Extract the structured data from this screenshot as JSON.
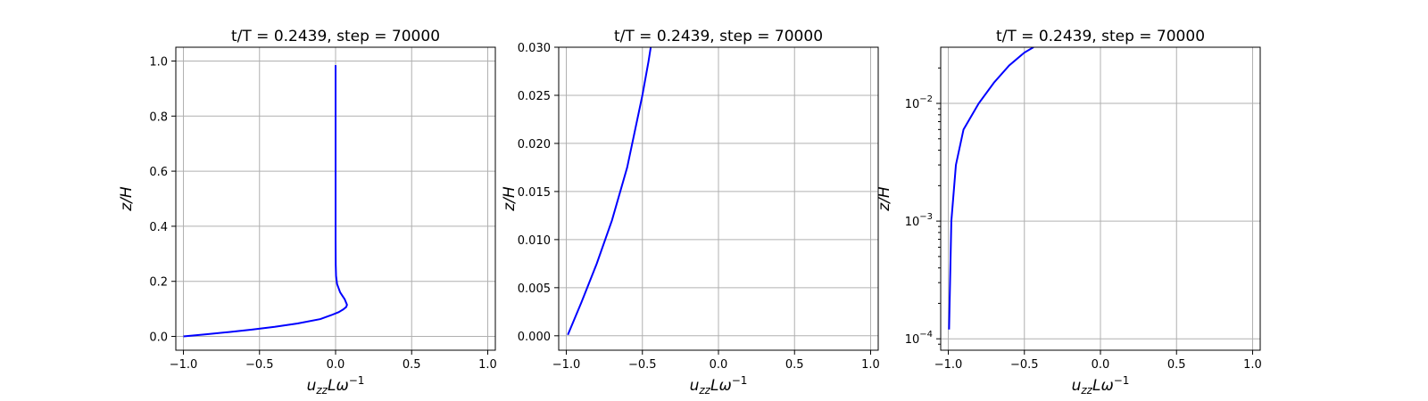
{
  "chart_data": [
    {
      "type": "line",
      "title": "t/T = 0.2439, step = 70000",
      "xlabel_base": "u",
      "xlabel_sub": "zz",
      "xlabel_mid": "Lω",
      "xlabel_sup": "−1",
      "ylabel": "z/H",
      "xlim": [
        -1.05,
        1.05
      ],
      "ylim": [
        -0.05,
        1.05
      ],
      "yscale": "linear",
      "grid": true,
      "xticks": [
        -1.0,
        -0.5,
        0.0,
        0.5,
        1.0
      ],
      "xtick_labels": [
        "−1.0",
        "−0.5",
        "0.0",
        "0.5",
        "1.0"
      ],
      "yticks": [
        0.0,
        0.2,
        0.4,
        0.6,
        0.8,
        1.0
      ],
      "ytick_labels": [
        "0.0",
        "0.2",
        "0.4",
        "0.6",
        "0.8",
        "1.0"
      ],
      "series": [
        {
          "color": "#0000ff",
          "x": [
            -1.0,
            -0.85,
            -0.7,
            -0.55,
            -0.4,
            -0.25,
            -0.1,
            -0.03,
            0.02,
            0.05,
            0.07,
            0.075,
            0.06,
            0.03,
            0.01,
            0.003,
            0.001,
            0.0,
            0.0,
            0.0,
            0.0
          ],
          "y": [
            0.0,
            0.008,
            0.016,
            0.025,
            0.035,
            0.047,
            0.063,
            0.077,
            0.088,
            0.098,
            0.107,
            0.115,
            0.135,
            0.16,
            0.19,
            0.22,
            0.26,
            0.35,
            0.5,
            0.75,
            0.985
          ]
        }
      ]
    },
    {
      "type": "line",
      "title": "t/T = 0.2439, step = 70000",
      "xlabel_base": "u",
      "xlabel_sub": "zz",
      "xlabel_mid": "Lω",
      "xlabel_sup": "−1",
      "ylabel": "z/H",
      "xlim": [
        -1.05,
        1.05
      ],
      "ylim": [
        -0.0015,
        0.03
      ],
      "yscale": "linear",
      "grid": true,
      "xticks": [
        -1.0,
        -0.5,
        0.0,
        0.5,
        1.0
      ],
      "xtick_labels": [
        "−1.0",
        "−0.5",
        "0.0",
        "0.5",
        "1.0"
      ],
      "yticks": [
        0.0,
        0.005,
        0.01,
        0.015,
        0.02,
        0.025,
        0.03
      ],
      "ytick_labels": [
        "0.000",
        "0.005",
        "0.010",
        "0.015",
        "0.020",
        "0.025",
        "0.030"
      ],
      "series": [
        {
          "color": "#0000ff",
          "x": [
            -0.99,
            -0.9,
            -0.8,
            -0.7,
            -0.6,
            -0.5,
            -0.46,
            -0.44
          ],
          "y": [
            0.0001,
            0.0035,
            0.0075,
            0.012,
            0.0175,
            0.025,
            0.0285,
            0.0305
          ]
        }
      ]
    },
    {
      "type": "line",
      "title": "t/T = 0.2439, step = 70000",
      "xlabel_base": "u",
      "xlabel_sub": "zz",
      "xlabel_mid": "Lω",
      "xlabel_sup": "−1",
      "ylabel": "z/H",
      "xlim": [
        -1.05,
        1.05
      ],
      "ylim": [
        8e-05,
        0.03
      ],
      "yscale": "log",
      "grid": true,
      "xticks": [
        -1.0,
        -0.5,
        0.0,
        0.5,
        1.0
      ],
      "xtick_labels": [
        "−1.0",
        "−0.5",
        "0.0",
        "0.5",
        "1.0"
      ],
      "yticks": [
        0.0001,
        0.001,
        0.01
      ],
      "ytick_base": "10",
      "ytick_exps": [
        "−4",
        "−3",
        "−2"
      ],
      "series": [
        {
          "color": "#0000ff",
          "x": [
            -0.995,
            -0.98,
            -0.95,
            -0.9,
            -0.8,
            -0.7,
            -0.6,
            -0.5,
            -0.44
          ],
          "y": [
            0.00012,
            0.001,
            0.003,
            0.006,
            0.01,
            0.015,
            0.021,
            0.027,
            0.03
          ]
        }
      ]
    }
  ]
}
